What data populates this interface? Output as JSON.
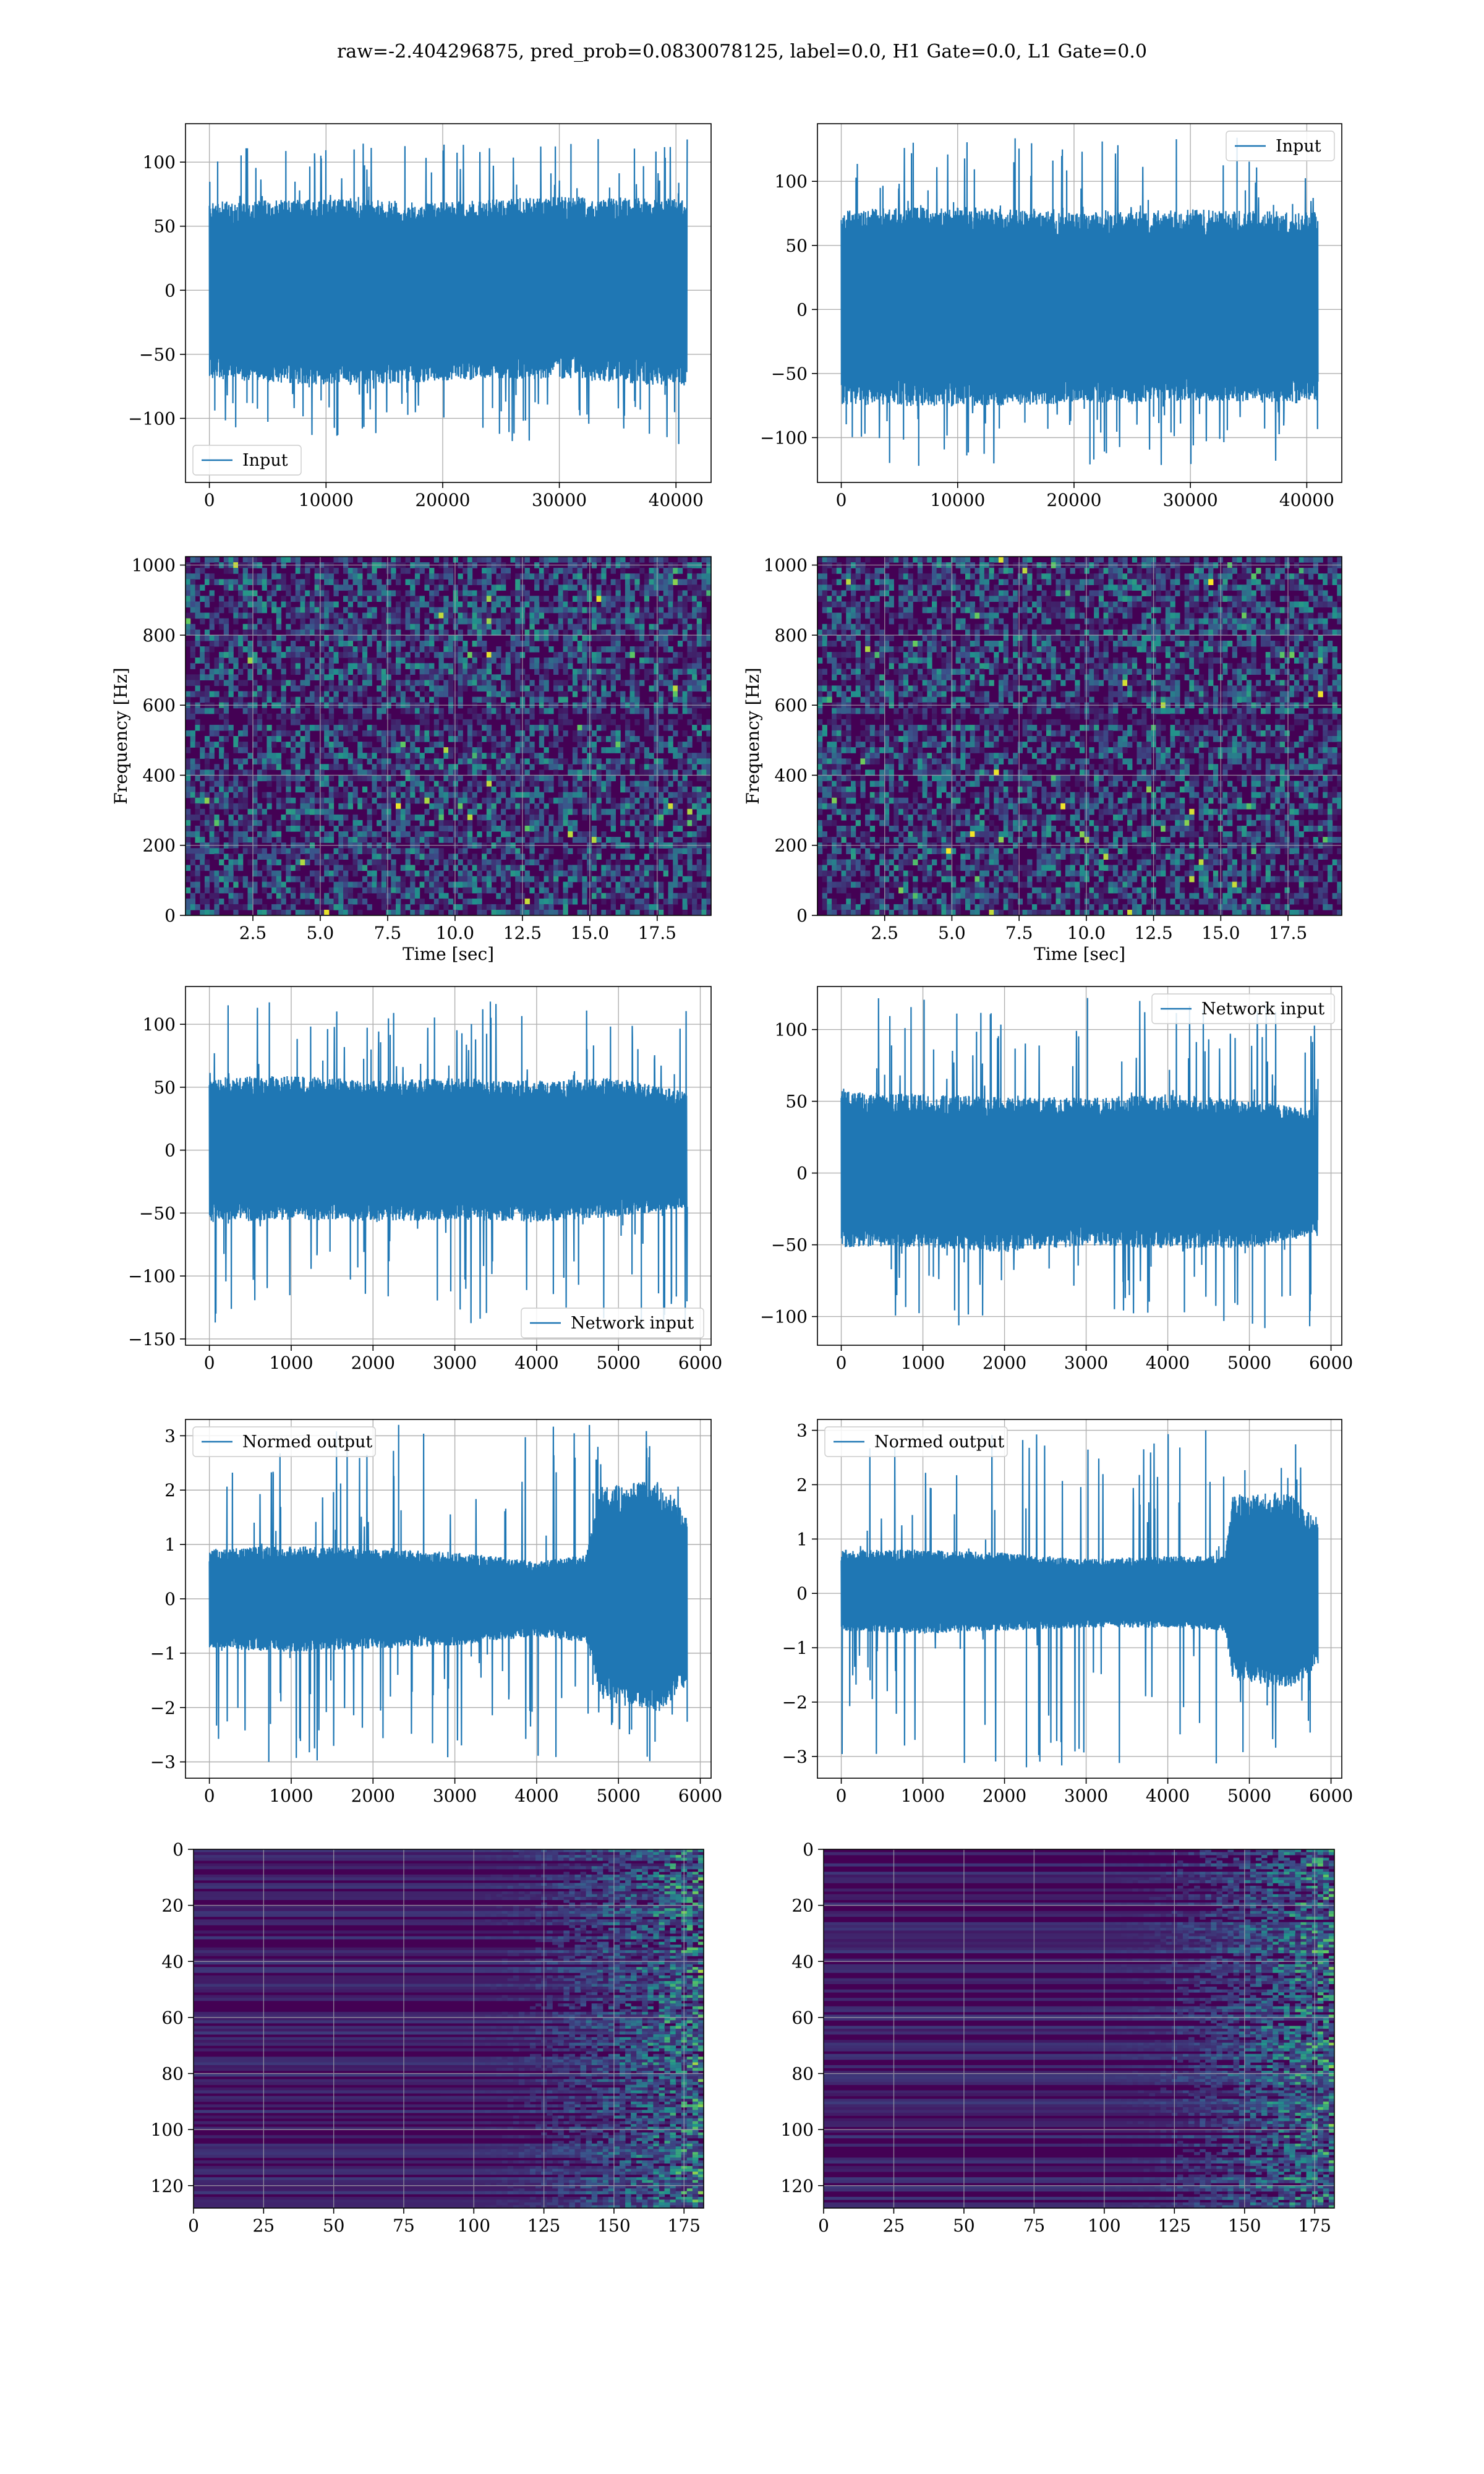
{
  "figure": {
    "title": "raw=-2.404296875, pred_prob=0.0830078125, label=0.0, H1 Gate=0.0, L1 Gate=0.0"
  },
  "colors": {
    "line": "#1f77b4",
    "grid": "#b0b0b0",
    "viridis_low": "#440154",
    "viridis_mid": "#21918c",
    "viridis_high": "#fde725"
  },
  "chart_data": [
    {
      "id": "input-h1",
      "type": "line",
      "legend": "Input",
      "legend_loc": "lower left",
      "x_range": [
        0,
        40960
      ],
      "x_tick_values": [
        0,
        10000,
        20000,
        30000,
        40000
      ],
      "x_tick_labels": [
        "0",
        "10000",
        "20000",
        "30000",
        "40000"
      ],
      "ylim": [
        -150,
        130
      ],
      "y_tick_values": [
        -100,
        -50,
        0,
        50,
        100
      ],
      "y_tick_labels": [
        "−100",
        "−50",
        "0",
        "50",
        "100"
      ],
      "series": [
        {
          "envelope": [
            [
              0,
              -60,
              60
            ],
            [
              10000,
              -65,
              62
            ],
            [
              20000,
              -62,
              60
            ],
            [
              30000,
              -60,
              64
            ],
            [
              40960,
              -66,
              62
            ]
          ],
          "spike_max": 118,
          "spike_min": -120
        }
      ]
    },
    {
      "id": "input-l1",
      "type": "line",
      "legend": "Input",
      "legend_loc": "upper right",
      "x_range": [
        0,
        40960
      ],
      "x_tick_values": [
        0,
        10000,
        20000,
        30000,
        40000
      ],
      "x_tick_labels": [
        "0",
        "10000",
        "20000",
        "30000",
        "40000"
      ],
      "ylim": [
        -135,
        145
      ],
      "y_tick_values": [
        -100,
        -50,
        0,
        50,
        100
      ],
      "y_tick_labels": [
        "−100",
        "−50",
        "0",
        "50",
        "100"
      ],
      "series": [
        {
          "envelope": [
            [
              0,
              -65,
              68
            ],
            [
              10000,
              -66,
              70
            ],
            [
              20000,
              -64,
              66
            ],
            [
              30000,
              -62,
              68
            ],
            [
              40960,
              -64,
              66
            ]
          ],
          "spike_max": 134,
          "spike_min": -122
        }
      ]
    },
    {
      "id": "spec-h1",
      "type": "heatmap",
      "xlabel": "Time [sec]",
      "ylabel": "Frequency [Hz]",
      "xlim": [
        0,
        19.5
      ],
      "x_tick_values": [
        2.5,
        5.0,
        7.5,
        10.0,
        12.5,
        15.0,
        17.5
      ],
      "x_tick_labels": [
        "2.5",
        "5.0",
        "7.5",
        "10.0",
        "12.5",
        "15.0",
        "17.5"
      ],
      "ylim": [
        0,
        1024
      ],
      "y_tick_values": [
        0,
        200,
        400,
        600,
        800,
        1000
      ],
      "y_tick_labels": [
        "0",
        "200",
        "400",
        "600",
        "800",
        "1000"
      ],
      "colormap": "viridis"
    },
    {
      "id": "spec-l1",
      "type": "heatmap",
      "xlabel": "Time [sec]",
      "ylabel": "Frequency [Hz]",
      "xlim": [
        0,
        19.5
      ],
      "x_tick_values": [
        2.5,
        5.0,
        7.5,
        10.0,
        12.5,
        15.0,
        17.5
      ],
      "x_tick_labels": [
        "2.5",
        "5.0",
        "7.5",
        "10.0",
        "12.5",
        "15.0",
        "17.5"
      ],
      "ylim": [
        0,
        1024
      ],
      "y_tick_values": [
        0,
        200,
        400,
        600,
        800,
        1000
      ],
      "y_tick_labels": [
        "0",
        "200",
        "400",
        "600",
        "800",
        "1000"
      ],
      "colormap": "viridis"
    },
    {
      "id": "netin-h1",
      "type": "line",
      "legend": "Network input",
      "legend_loc": "lower right",
      "x_range": [
        0,
        5840
      ],
      "x_tick_values": [
        0,
        1000,
        2000,
        3000,
        4000,
        5000,
        6000
      ],
      "x_tick_labels": [
        "0",
        "1000",
        "2000",
        "3000",
        "4000",
        "5000",
        "6000"
      ],
      "ylim": [
        -155,
        130
      ],
      "y_tick_values": [
        -150,
        -100,
        -50,
        0,
        50,
        100
      ],
      "y_tick_labels": [
        "−150",
        "−100",
        "−50",
        "0",
        "50",
        "100"
      ],
      "series": [
        {
          "envelope": [
            [
              0,
              -50,
              50
            ],
            [
              1000,
              -48,
              52
            ],
            [
              2000,
              -50,
              48
            ],
            [
              3000,
              -48,
              50
            ],
            [
              4000,
              -50,
              48
            ],
            [
              5000,
              -46,
              50
            ],
            [
              5840,
              -40,
              40
            ]
          ],
          "spike_max": 118,
          "spike_min": -140
        }
      ]
    },
    {
      "id": "netin-l1",
      "type": "line",
      "legend": "Network input",
      "legend_loc": "upper right",
      "x_range": [
        0,
        5840
      ],
      "x_tick_values": [
        0,
        1000,
        2000,
        3000,
        4000,
        5000,
        6000
      ],
      "x_tick_labels": [
        "0",
        "1000",
        "2000",
        "3000",
        "4000",
        "5000",
        "6000"
      ],
      "ylim": [
        -120,
        130
      ],
      "y_tick_values": [
        -100,
        -50,
        0,
        50,
        100
      ],
      "y_tick_labels": [
        "−100",
        "−50",
        "0",
        "50",
        "100"
      ],
      "series": [
        {
          "envelope": [
            [
              0,
              -45,
              50
            ],
            [
              1000,
              -45,
              48
            ],
            [
              2000,
              -48,
              46
            ],
            [
              3000,
              -44,
              46
            ],
            [
              4000,
              -46,
              48
            ],
            [
              5000,
              -46,
              44
            ],
            [
              5840,
              -38,
              38
            ]
          ],
          "spike_max": 122,
          "spike_min": -108
        }
      ]
    },
    {
      "id": "normed-h1",
      "type": "line",
      "legend": "Normed output",
      "legend_loc": "upper left",
      "x_range": [
        0,
        5840
      ],
      "x_tick_values": [
        0,
        1000,
        2000,
        3000,
        4000,
        5000,
        6000
      ],
      "x_tick_labels": [
        "0",
        "1000",
        "2000",
        "3000",
        "4000",
        "5000",
        "6000"
      ],
      "ylim": [
        -3.3,
        3.3
      ],
      "y_tick_values": [
        -3,
        -2,
        -1,
        0,
        1,
        2,
        3
      ],
      "y_tick_labels": [
        "−3",
        "−2",
        "−1",
        "0",
        "1",
        "2",
        "3"
      ],
      "series": [
        {
          "envelope": [
            [
              0,
              -0.8,
              0.8
            ],
            [
              1000,
              -0.85,
              0.85
            ],
            [
              2000,
              -0.8,
              0.8
            ],
            [
              3000,
              -0.75,
              0.75
            ],
            [
              4000,
              -0.6,
              0.6
            ],
            [
              4600,
              -0.7,
              0.7
            ],
            [
              4800,
              -1.6,
              1.8
            ],
            [
              5500,
              -1.8,
              1.9
            ],
            [
              5840,
              -1.4,
              1.4
            ]
          ],
          "spike_max": 3.2,
          "spike_min": -3.0
        }
      ]
    },
    {
      "id": "normed-l1",
      "type": "line",
      "legend": "Normed output",
      "legend_loc": "upper left",
      "x_range": [
        0,
        5840
      ],
      "x_tick_values": [
        0,
        1000,
        2000,
        3000,
        4000,
        5000,
        6000
      ],
      "x_tick_labels": [
        "0",
        "1000",
        "2000",
        "3000",
        "4000",
        "5000",
        "6000"
      ],
      "ylim": [
        -3.4,
        3.2
      ],
      "y_tick_values": [
        -3,
        -2,
        -1,
        0,
        1,
        2,
        3
      ],
      "y_tick_labels": [
        "−3",
        "−2",
        "−1",
        "0",
        "1",
        "2",
        "3"
      ],
      "series": [
        {
          "envelope": [
            [
              0,
              -0.6,
              0.7
            ],
            [
              1000,
              -0.65,
              0.7
            ],
            [
              2000,
              -0.6,
              0.65
            ],
            [
              3000,
              -0.55,
              0.55
            ],
            [
              4000,
              -0.55,
              0.6
            ],
            [
              4700,
              -0.6,
              0.6
            ],
            [
              4800,
              -1.4,
              1.6
            ],
            [
              5500,
              -1.5,
              1.6
            ],
            [
              5840,
              -1.2,
              1.2
            ]
          ],
          "spike_max": 3.0,
          "spike_min": -3.2
        }
      ]
    },
    {
      "id": "feat-h1",
      "type": "heatmap",
      "colormap": "viridis",
      "xlim": [
        0,
        182
      ],
      "x_tick_values": [
        0,
        25,
        50,
        75,
        100,
        125,
        150,
        175
      ],
      "x_tick_labels": [
        "0",
        "25",
        "50",
        "75",
        "100",
        "125",
        "150",
        "175"
      ],
      "ylim": [
        128,
        0
      ],
      "y_tick_values": [
        0,
        20,
        40,
        60,
        80,
        100,
        120
      ],
      "y_tick_labels": [
        "0",
        "20",
        "40",
        "60",
        "80",
        "100",
        "120"
      ],
      "activity_onset_x": 110
    },
    {
      "id": "feat-l1",
      "type": "heatmap",
      "colormap": "viridis",
      "xlim": [
        0,
        182
      ],
      "x_tick_values": [
        0,
        25,
        50,
        75,
        100,
        125,
        150,
        175
      ],
      "x_tick_labels": [
        "0",
        "25",
        "50",
        "75",
        "100",
        "125",
        "150",
        "175"
      ],
      "ylim": [
        128,
        0
      ],
      "y_tick_values": [
        0,
        20,
        40,
        60,
        80,
        100,
        120
      ],
      "y_tick_labels": [
        "0",
        "20",
        "40",
        "60",
        "80",
        "100",
        "120"
      ],
      "activity_onset_x": 115
    }
  ]
}
